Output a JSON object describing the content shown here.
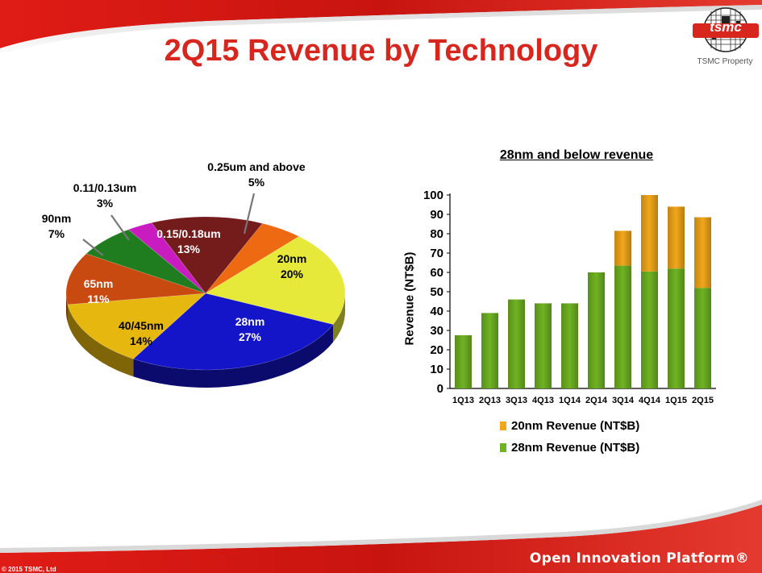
{
  "slide": {
    "title": "2Q15 Revenue by Technology",
    "logo_text": "tsmc",
    "logo_caption": "TSMC Property",
    "footer_brand": "Open Innovation Platform®",
    "copyright": "© 2015 TSMC, Ltd"
  },
  "chart_data": [
    {
      "type": "pie",
      "labels": [
        "0.25um and above",
        "20nm",
        "28nm",
        "40/45nm",
        "65nm",
        "90nm",
        "0.11/0.13um",
        "0.15/0.18um"
      ],
      "values": [
        5,
        20,
        27,
        14,
        11,
        7,
        3,
        13
      ],
      "value_labels": [
        "5%",
        "20%",
        "27%",
        "14%",
        "11%",
        "7%",
        "3%",
        "13%"
      ],
      "colors": [
        "#ee6a12",
        "#e6e83a",
        "#1414c8",
        "#e6b80f",
        "#c84a10",
        "#1f7d1f",
        "#c81cc0",
        "#741c1c"
      ]
    },
    {
      "type": "bar",
      "stacked": true,
      "title": "28nm and below revenue",
      "ylabel": "Revenue (NT$B)",
      "ylim": [
        0,
        100
      ],
      "yticks": [
        0,
        10,
        20,
        30,
        40,
        50,
        60,
        70,
        80,
        90,
        100
      ],
      "categories": [
        "1Q13",
        "2Q13",
        "3Q13",
        "4Q13",
        "1Q14",
        "2Q14",
        "3Q14",
        "4Q14",
        "1Q15",
        "2Q15"
      ],
      "series": [
        {
          "name": "28nm Revenue (NT$B)",
          "color": "#6fb322",
          "values": [
            27.5,
            39,
            46,
            44,
            44,
            60,
            63.5,
            60.5,
            62,
            52
          ]
        },
        {
          "name": "20nm Revenue (NT$B)",
          "color": "#f2a71a",
          "values": [
            0,
            0,
            0,
            0,
            0,
            0,
            18,
            39.5,
            32,
            36.5
          ]
        }
      ],
      "legend": [
        {
          "name": "20nm Revenue (NT$B)",
          "color": "#f2a71a"
        },
        {
          "name": "28nm Revenue (NT$B)",
          "color": "#6fb322"
        }
      ]
    }
  ]
}
